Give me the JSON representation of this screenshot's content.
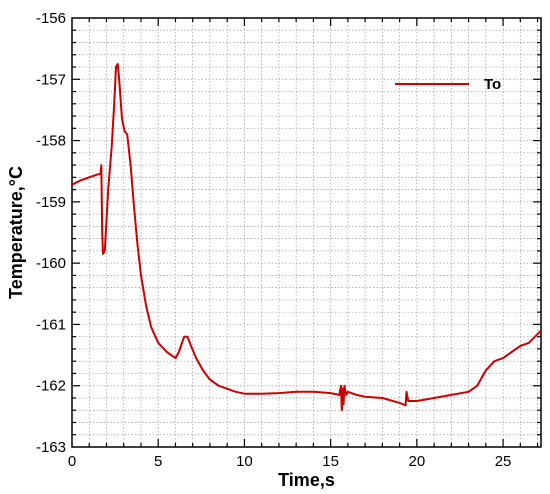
{
  "chart_data": {
    "type": "line",
    "title": "",
    "xlabel": "Time,s",
    "ylabel": "Temperature,°C",
    "xlim": [
      0,
      27.2
    ],
    "ylim": [
      -163,
      -156
    ],
    "xticks": [
      0,
      5,
      10,
      15,
      20,
      25
    ],
    "yticks": [
      -156,
      -157,
      -158,
      -159,
      -160,
      -161,
      -162,
      -163
    ],
    "xtick_labels": [
      "0",
      "5",
      "10",
      "15",
      "20",
      "25"
    ],
    "ytick_labels": [
      "-156",
      "-157",
      "-158",
      "-159",
      "-160",
      "-161",
      "-162",
      "-163"
    ],
    "grid": true,
    "grid_style": "dotted",
    "legend": {
      "position": "top-right",
      "entries": [
        "To"
      ]
    },
    "series": [
      {
        "name": "To",
        "color": "#cc0000",
        "x": [
          0,
          0.5,
          1.0,
          1.5,
          1.65,
          1.7,
          1.75,
          1.8,
          1.9,
          2.0,
          2.1,
          2.3,
          2.45,
          2.55,
          2.65,
          2.75,
          2.9,
          3.05,
          3.2,
          3.4,
          3.6,
          3.8,
          4.0,
          4.3,
          4.6,
          5.0,
          5.5,
          6.0,
          6.2,
          6.5,
          6.7,
          6.9,
          7.2,
          7.6,
          8.0,
          8.5,
          9.0,
          9.5,
          10.0,
          11.0,
          12.0,
          13.0,
          14.0,
          15.0,
          15.5,
          15.6,
          15.65,
          15.7,
          15.75,
          15.8,
          15.9,
          16.0,
          16.5,
          17.0,
          18.0,
          19.0,
          19.35,
          19.4,
          19.5,
          20.0,
          21.0,
          22.0,
          23.0,
          23.5,
          24.0,
          24.5,
          25.0,
          25.5,
          26.0,
          26.5,
          27.2
        ],
        "y": [
          -158.72,
          -158.65,
          -158.6,
          -158.55,
          -158.55,
          -158.4,
          -159.5,
          -159.85,
          -159.8,
          -159.3,
          -158.8,
          -158.1,
          -157.4,
          -156.8,
          -156.75,
          -157.05,
          -157.65,
          -157.85,
          -157.9,
          -158.4,
          -159.1,
          -159.7,
          -160.2,
          -160.7,
          -161.05,
          -161.3,
          -161.45,
          -161.55,
          -161.45,
          -161.2,
          -161.2,
          -161.35,
          -161.55,
          -161.75,
          -161.9,
          -162.0,
          -162.05,
          -162.1,
          -162.13,
          -162.13,
          -162.12,
          -162.1,
          -162.1,
          -162.12,
          -162.15,
          -162.0,
          -162.4,
          -162.05,
          -162.3,
          -162.0,
          -162.15,
          -162.1,
          -162.15,
          -162.18,
          -162.2,
          -162.28,
          -162.32,
          -162.1,
          -162.25,
          -162.25,
          -162.2,
          -162.15,
          -162.1,
          -162.0,
          -161.75,
          -161.6,
          -161.55,
          -161.45,
          -161.35,
          -161.3,
          -161.1
        ]
      }
    ]
  }
}
